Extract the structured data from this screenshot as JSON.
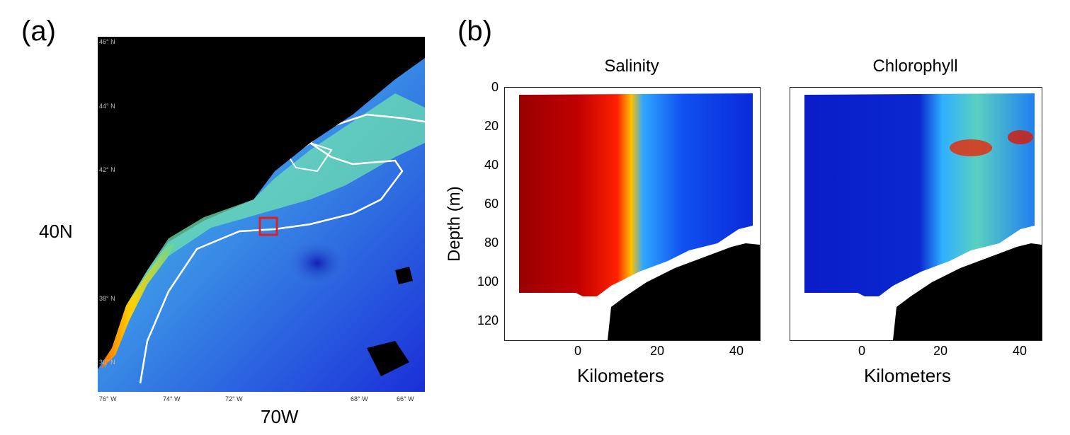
{
  "panel_a": {
    "label": "(a)",
    "lat_annotation": "40N",
    "lon_annotation": "70W",
    "lat_ticks": [
      "46° N",
      "44° N",
      "42° N",
      "38° N",
      "36° N"
    ],
    "lon_ticks": [
      "76° W",
      "74° W",
      "72° W",
      "68° W",
      "66° W"
    ]
  },
  "panel_b": {
    "label": "(b)",
    "salinity": {
      "title": "Salinity"
    },
    "chlorophyll": {
      "title": "Chlorophyll"
    },
    "ylabel": "Depth (m)",
    "xlabel": "Kilometers",
    "yticks": [
      "0",
      "20",
      "40",
      "60",
      "80",
      "100",
      "120"
    ],
    "xticks": [
      "0",
      "20",
      "40"
    ]
  },
  "colors": {
    "land": "#000000",
    "contour": "#ffffff",
    "highlight_box": "#e02020"
  }
}
